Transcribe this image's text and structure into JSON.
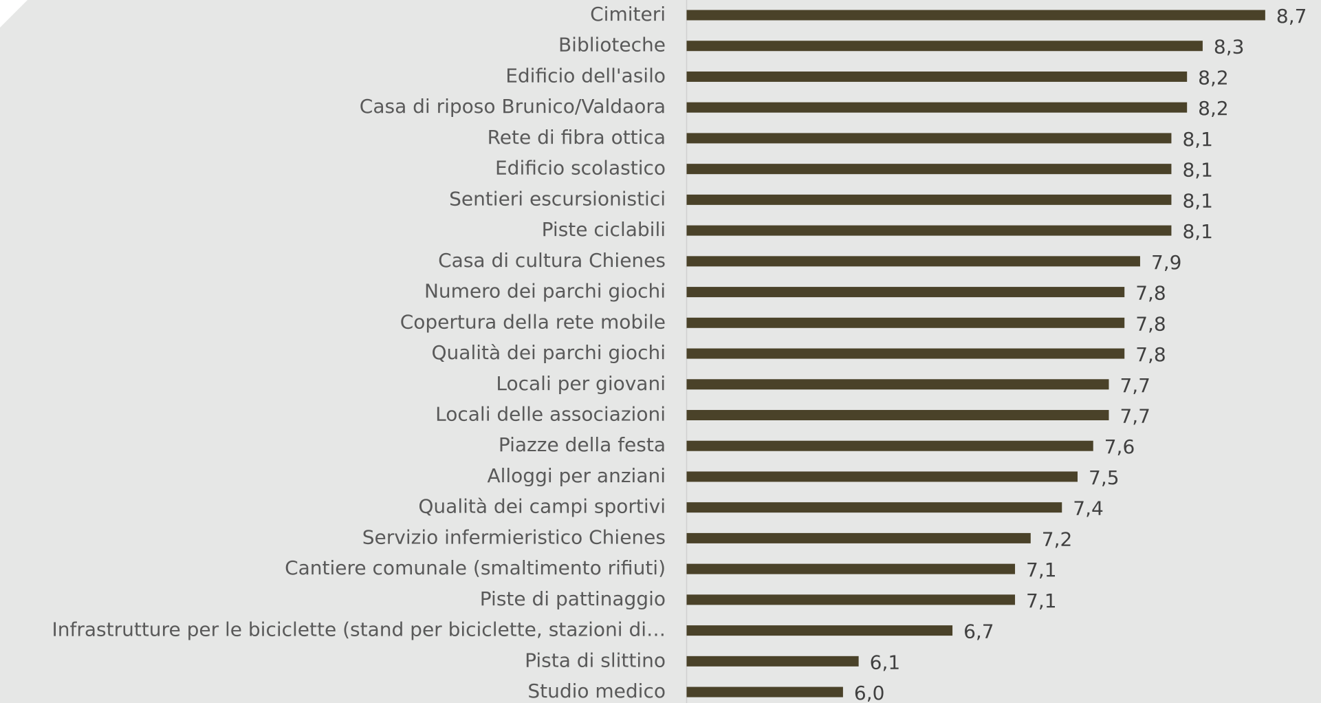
{
  "chart_data": {
    "type": "barh",
    "categories": [
      "Cimiteri",
      "Biblioteche",
      "Edificio dell'asilo",
      "Casa di riposo Brunico/Valdaora",
      "Rete di fibra ottica",
      "Edificio scolastico",
      "Sentieri escursionistici",
      "Piste ciclabili",
      "Casa di cultura Chienes",
      "Numero dei parchi giochi",
      "Copertura della rete mobile",
      "Qualità dei parchi giochi",
      "Locali per giovani",
      "Locali delle associazioni",
      "Piazze della festa",
      "Alloggi per anziani",
      "Qualità dei campi sportivi",
      "Servizio infermieristico Chienes",
      "Cantiere comunale (smaltimento rifiuti)",
      "Piste di pattinaggio",
      "Infrastrutture per le biciclette (stand per biciclette, stazioni di…",
      "Pista di slittino",
      "Studio medico"
    ],
    "values": [
      8.7,
      8.3,
      8.2,
      8.2,
      8.1,
      8.1,
      8.1,
      8.1,
      7.9,
      7.8,
      7.8,
      7.8,
      7.7,
      7.7,
      7.6,
      7.5,
      7.4,
      7.2,
      7.1,
      7.1,
      6.7,
      6.1,
      6.0
    ],
    "value_labels": [
      "8,7",
      "8,3",
      "8,2",
      "8,2",
      "8,1",
      "8,1",
      "8,1",
      "8,1",
      "7,9",
      "7,8",
      "7,8",
      "7,8",
      "7,7",
      "7,7",
      "7,6",
      "7,5",
      "7,4",
      "7,2",
      "7,1",
      "7,1",
      "6,7",
      "6,1",
      "6,0"
    ],
    "color": "#4a4229",
    "xlim": [
      5,
      9
    ]
  }
}
